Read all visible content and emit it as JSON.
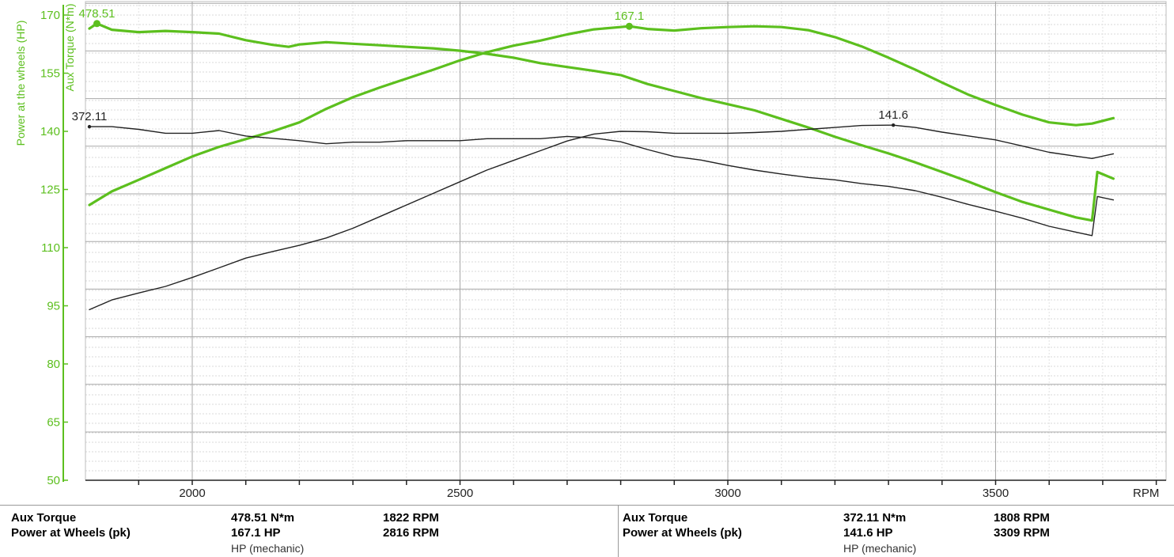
{
  "chart_data": {
    "type": "line",
    "xlabel": "RPM",
    "xlim": [
      1800,
      3800
    ],
    "x_ticks": [
      2000,
      2500,
      3000,
      3500
    ],
    "y_left": {
      "label": "Power at the wheels (HP)",
      "ticks": [
        50,
        65,
        80,
        95,
        110,
        125,
        140,
        155,
        170
      ],
      "lim": [
        50,
        172
      ]
    },
    "y_left_secondary": {
      "label": "Aux Torque (N*m)"
    },
    "grid": true,
    "series": [
      {
        "name": "Aux Torque",
        "color": "#5cbf1e",
        "axis": "hp_scale",
        "x": [
          1808,
          1822,
          1850,
          1900,
          1950,
          2000,
          2050,
          2100,
          2150,
          2180,
          2200,
          2250,
          2300,
          2350,
          2400,
          2450,
          2500,
          2550,
          2600,
          2650,
          2700,
          2750,
          2800,
          2850,
          2900,
          2950,
          3000,
          3050,
          3100,
          3150,
          3200,
          3250,
          3300,
          3350,
          3400,
          3450,
          3500,
          3550,
          3600,
          3650,
          3680,
          3690,
          3720
        ],
        "values": [
          166.5,
          167.8,
          166.2,
          165.6,
          165.9,
          165.6,
          165.2,
          163.5,
          162.3,
          161.8,
          162.4,
          163.0,
          162.6,
          162.2,
          161.8,
          161.4,
          160.8,
          160.0,
          159.0,
          157.6,
          156.6,
          155.6,
          154.5,
          152.2,
          150.4,
          148.6,
          147.0,
          145.4,
          143.2,
          141.0,
          138.6,
          136.4,
          134.3,
          132.0,
          129.5,
          127.0,
          124.3,
          121.8,
          119.8,
          117.8,
          117.0,
          129.5,
          127.8
        ],
        "annotations": [
          {
            "x": 1822,
            "label": "478.51"
          }
        ]
      },
      {
        "name": "Power at Wheels (pk)",
        "color": "#5cbf1e",
        "axis": "hp_scale",
        "x": [
          1808,
          1850,
          1900,
          1950,
          2000,
          2050,
          2100,
          2150,
          2200,
          2250,
          2300,
          2350,
          2400,
          2450,
          2500,
          2550,
          2600,
          2650,
          2700,
          2750,
          2800,
          2816,
          2850,
          2900,
          2950,
          3000,
          3050,
          3100,
          3150,
          3200,
          3250,
          3300,
          3350,
          3400,
          3450,
          3500,
          3550,
          3600,
          3650,
          3680,
          3720
        ],
        "values": [
          121.0,
          124.5,
          127.5,
          130.5,
          133.5,
          136.0,
          138.0,
          140.0,
          142.3,
          145.8,
          148.8,
          151.3,
          153.6,
          155.9,
          158.3,
          160.4,
          162.1,
          163.4,
          165.0,
          166.3,
          166.9,
          167.1,
          166.4,
          166.0,
          166.6,
          166.9,
          167.1,
          166.9,
          166.1,
          164.3,
          161.9,
          159.0,
          155.9,
          152.6,
          149.4,
          146.8,
          144.3,
          142.3,
          141.6,
          142.0,
          143.4
        ],
        "annotations": [
          {
            "x": 2816,
            "label": "167.1"
          }
        ]
      },
      {
        "name": "Aux Torque (reference)",
        "color": "#222222",
        "axis": "hp_scale",
        "x": [
          1808,
          1850,
          1900,
          1950,
          2000,
          2050,
          2100,
          2150,
          2200,
          2250,
          2300,
          2350,
          2400,
          2450,
          2500,
          2550,
          2600,
          2650,
          2700,
          2750,
          2800,
          2850,
          2900,
          2950,
          3000,
          3050,
          3100,
          3150,
          3200,
          3250,
          3300,
          3350,
          3400,
          3450,
          3500,
          3550,
          3600,
          3650,
          3680,
          3690,
          3720
        ],
        "values": [
          141.2,
          141.2,
          140.5,
          139.5,
          139.5,
          140.2,
          138.8,
          138.2,
          137.6,
          136.8,
          137.2,
          137.2,
          137.6,
          137.6,
          137.6,
          138.1,
          138.1,
          138.1,
          138.7,
          138.3,
          137.3,
          135.3,
          133.5,
          132.6,
          131.2,
          130.0,
          129.0,
          128.1,
          127.5,
          126.5,
          125.8,
          124.7,
          123.0,
          121.1,
          119.4,
          117.6,
          115.5,
          114.0,
          113.1,
          123.2,
          122.3
        ],
        "annotations": [
          {
            "x": 1808,
            "label": "372.11"
          }
        ]
      },
      {
        "name": "Power at Wheels (pk) (reference)",
        "color": "#222222",
        "axis": "hp_scale",
        "x": [
          1808,
          1850,
          1900,
          1950,
          2000,
          2050,
          2100,
          2150,
          2200,
          2250,
          2300,
          2350,
          2400,
          2450,
          2500,
          2550,
          2600,
          2650,
          2700,
          2750,
          2800,
          2850,
          2900,
          2950,
          3000,
          3050,
          3100,
          3150,
          3200,
          3250,
          3300,
          3309,
          3350,
          3400,
          3450,
          3500,
          3550,
          3600,
          3650,
          3680,
          3720
        ],
        "values": [
          94.0,
          96.5,
          98.3,
          100.0,
          102.3,
          104.8,
          107.3,
          109.0,
          110.6,
          112.5,
          115.0,
          118.0,
          121.0,
          124.0,
          127.0,
          130.0,
          132.5,
          135.0,
          137.5,
          139.3,
          140.0,
          139.9,
          139.5,
          139.5,
          139.5,
          139.7,
          140.0,
          140.5,
          141.0,
          141.5,
          141.6,
          141.6,
          141.0,
          139.8,
          138.8,
          137.8,
          136.2,
          134.6,
          133.6,
          133.0,
          134.2
        ],
        "annotations": [
          {
            "x": 3309,
            "label": "141.6"
          }
        ]
      }
    ]
  },
  "legend": {
    "left": {
      "row1": {
        "name": "Aux Torque",
        "value": "478.51 N*m",
        "rpm": "1822 RPM"
      },
      "row2": {
        "name": "Power at Wheels  (pk)",
        "value": "167.1 HP",
        "rpm": "2816 RPM"
      },
      "unit": "HP (mechanic)"
    },
    "right": {
      "row1": {
        "name": "Aux Torque",
        "value": "372.11 N*m",
        "rpm": "1808 RPM"
      },
      "row2": {
        "name": "Power at Wheels  (pk)",
        "value": "141.6 HP",
        "rpm": "3309 RPM"
      },
      "unit": "HP (mechanic)"
    }
  }
}
